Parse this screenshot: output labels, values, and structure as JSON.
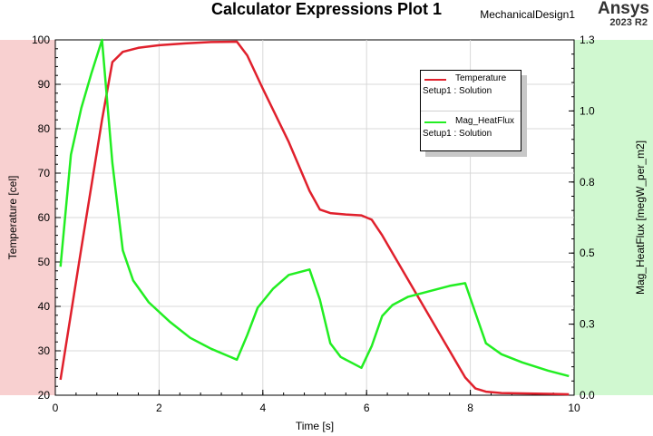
{
  "header": {
    "title": "Calculator Expressions Plot 1",
    "design_name": "MechanicalDesign1",
    "brand": "Ansys",
    "version": "2023 R2"
  },
  "chart_data": {
    "type": "line",
    "title": "Calculator Expressions Plot 1",
    "xlabel": "Time [s]",
    "ylabel_left": "Temperature [cel]",
    "ylabel_right": "Mag_HeatFlux [megW_per_m2]",
    "xlim": [
      0,
      10
    ],
    "ylim_left": [
      20,
      100
    ],
    "ylim_right": [
      0,
      1.3
    ],
    "x_ticks": [
      "0",
      "2",
      "4",
      "6",
      "8",
      "10"
    ],
    "y_left_ticks": [
      "20",
      "30",
      "40",
      "50",
      "60",
      "70",
      "80",
      "90",
      "100"
    ],
    "y_right_ticks": [
      "0.0",
      "0.3",
      "0.5",
      "0.8",
      "1.0",
      "1.3"
    ],
    "y_right_tick_values": [
      0,
      0.26,
      0.52,
      0.78,
      1.04,
      1.3
    ],
    "grid": true,
    "legend_position": "top-right",
    "colors": {
      "temperature": "#e0202c",
      "heatflux": "#22ee22",
      "left_band": "#f8d0d0",
      "right_band": "#d0f8d0"
    },
    "series": [
      {
        "name": "Temperature",
        "source": "Setup1 : Solution",
        "axis": "left",
        "color": "#e0202c",
        "x": [
          0.1,
          0.5,
          0.9,
          1.1,
          1.3,
          1.6,
          2.0,
          2.5,
          3.0,
          3.5,
          3.7,
          4.0,
          4.5,
          4.9,
          5.1,
          5.3,
          5.6,
          5.9,
          6.1,
          6.3,
          6.5,
          7.0,
          7.5,
          7.9,
          8.1,
          8.3,
          8.6,
          9.0,
          9.5,
          9.9
        ],
        "y": [
          23.5,
          53.0,
          82.0,
          95.0,
          97.3,
          98.2,
          98.8,
          99.2,
          99.5,
          99.6,
          96.5,
          89.0,
          77.0,
          66.0,
          61.8,
          61.0,
          60.7,
          60.5,
          59.5,
          56.0,
          52.0,
          42.0,
          32.0,
          24.0,
          21.5,
          20.8,
          20.5,
          20.4,
          20.3,
          20.2
        ]
      },
      {
        "name": "Mag_HeatFlux",
        "source": "Setup1 : Solution",
        "axis": "right",
        "color": "#22ee22",
        "x": [
          0.1,
          0.3,
          0.5,
          0.7,
          0.9,
          1.1,
          1.3,
          1.5,
          1.8,
          2.2,
          2.6,
          3.0,
          3.5,
          3.7,
          3.9,
          4.2,
          4.5,
          4.9,
          5.1,
          5.3,
          5.5,
          5.9,
          6.1,
          6.3,
          6.5,
          6.8,
          7.2,
          7.6,
          7.9,
          8.1,
          8.3,
          8.6,
          9.0,
          9.5,
          9.9
        ],
        "y": [
          0.47,
          0.88,
          1.05,
          1.18,
          1.3,
          0.85,
          0.53,
          0.42,
          0.34,
          0.27,
          0.21,
          0.17,
          0.13,
          0.22,
          0.32,
          0.39,
          0.44,
          0.46,
          0.35,
          0.19,
          0.14,
          0.1,
          0.18,
          0.29,
          0.33,
          0.36,
          0.38,
          0.4,
          0.41,
          0.3,
          0.19,
          0.15,
          0.12,
          0.09,
          0.07
        ]
      }
    ]
  }
}
